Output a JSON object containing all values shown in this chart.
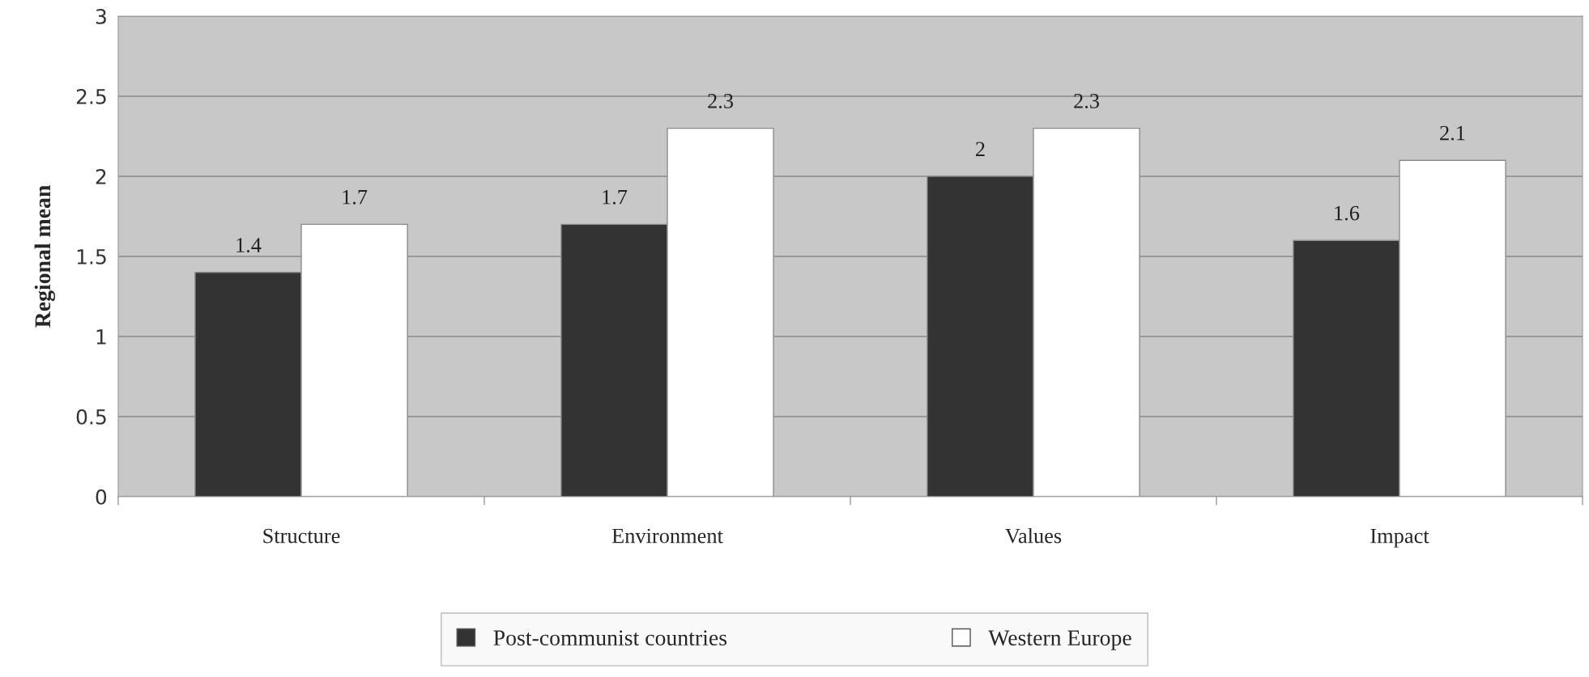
{
  "chart_data": {
    "type": "bar",
    "ylabel": "Regional mean",
    "categories": [
      "Structure",
      "Environment",
      "Values",
      "Impact"
    ],
    "series": [
      {
        "name": "Post-communist countries",
        "color": "#333333",
        "values": [
          1.4,
          1.7,
          2,
          1.6
        ]
      },
      {
        "name": "Western Europe",
        "color": "#ffffff",
        "values": [
          1.7,
          2.3,
          2.3,
          2.1
        ]
      }
    ],
    "ylim": [
      0,
      3
    ],
    "yticks": [
      0,
      0.5,
      1,
      1.5,
      2,
      2.5,
      3
    ],
    "grid": "y",
    "legend": "bottom",
    "data_labels": true
  }
}
